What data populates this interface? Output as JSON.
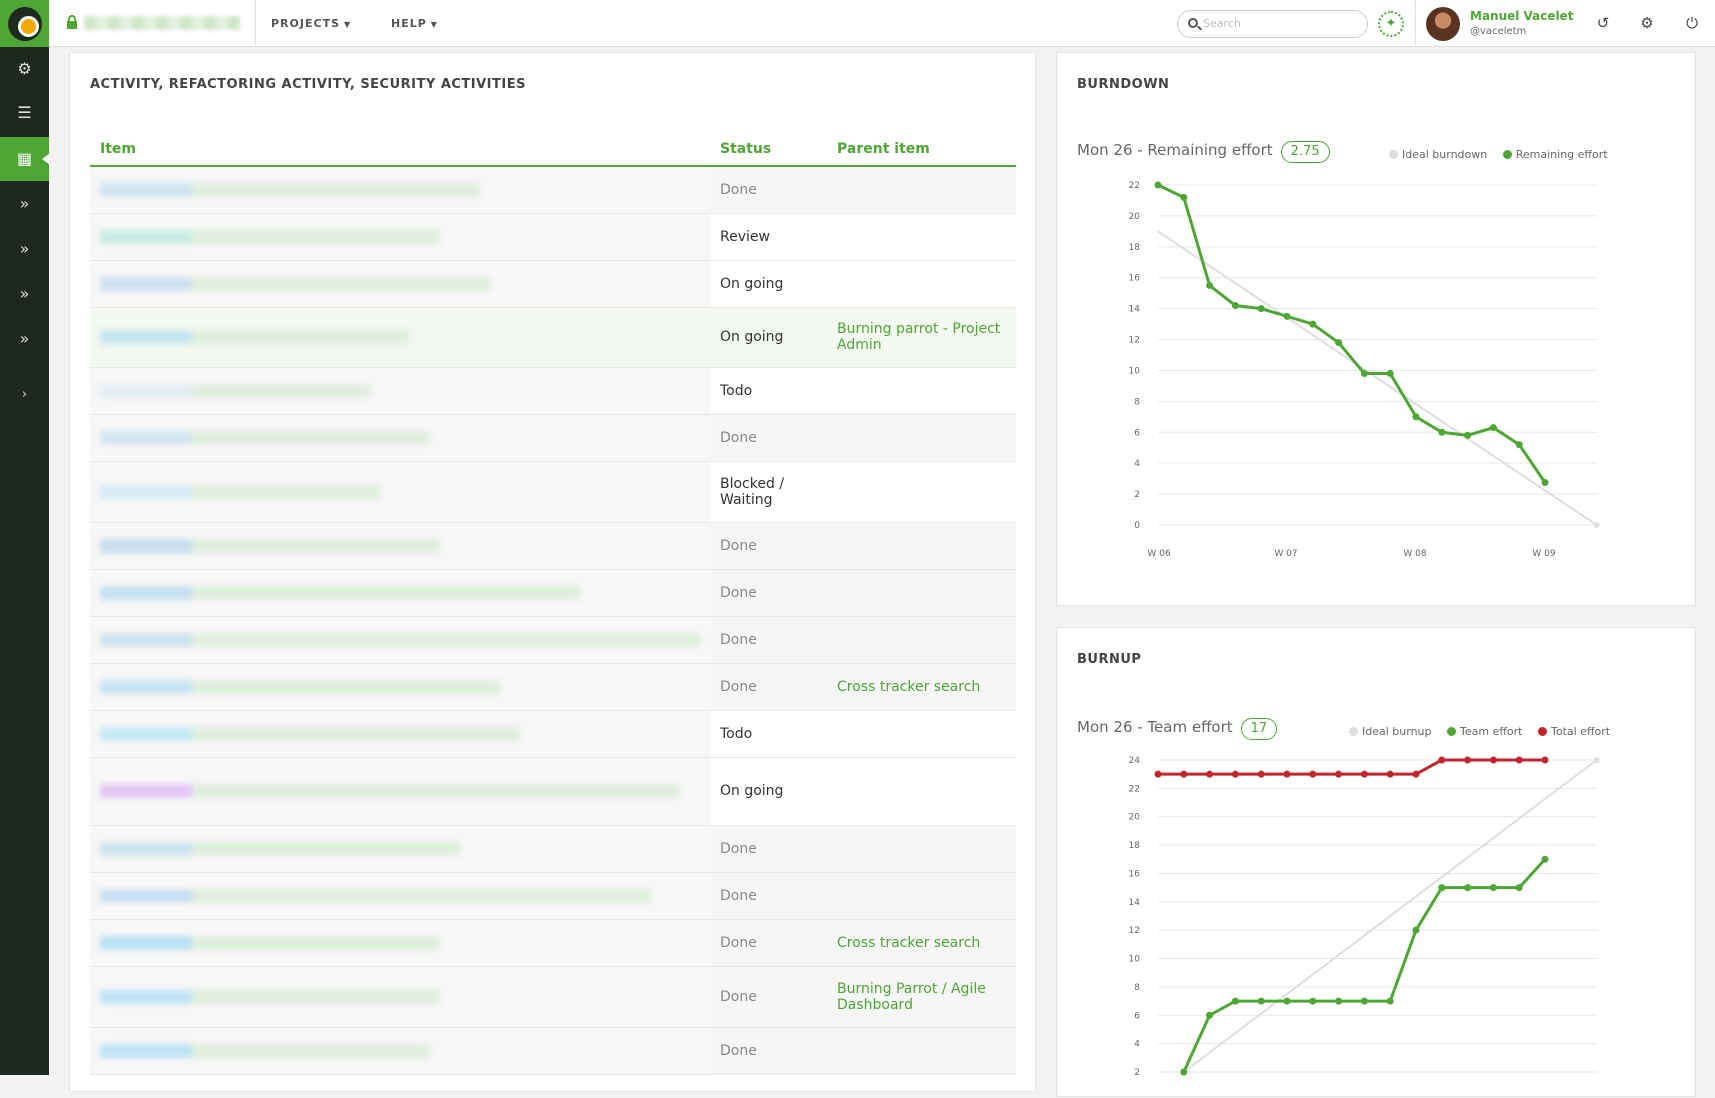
{
  "topbar": {
    "menu": [
      {
        "label": "PROJECTS"
      },
      {
        "label": "HELP"
      }
    ],
    "search_placeholder": "Search",
    "user": {
      "name": "Manuel Vacelet",
      "handle": "@vaceletm"
    }
  },
  "sidebar": {
    "items": [
      {
        "icon": "gears-icon"
      },
      {
        "icon": "list-icon"
      },
      {
        "icon": "table-icon",
        "active": true
      },
      {
        "icon": "double-chevron-icon"
      },
      {
        "icon": "double-chevron-icon"
      },
      {
        "icon": "double-chevron-icon"
      },
      {
        "icon": "double-chevron-icon"
      },
      {
        "icon": "chevron-right-icon"
      }
    ]
  },
  "report": {
    "title": "ACTIVITY, REFACTORING ACTIVITY, SECURITY ACTIVITIES",
    "columns": {
      "item": "Item",
      "status": "Status",
      "parent": "Parent item"
    },
    "rows": [
      {
        "status": "Done",
        "parent": ""
      },
      {
        "status": "Review",
        "parent": ""
      },
      {
        "status": "On going",
        "parent": ""
      },
      {
        "status": "On going",
        "parent": "Burning parrot - Project Admin"
      },
      {
        "status": "Todo",
        "parent": ""
      },
      {
        "status": "Done",
        "parent": ""
      },
      {
        "status": "Blocked / Waiting",
        "parent": ""
      },
      {
        "status": "Done",
        "parent": ""
      },
      {
        "status": "Done",
        "parent": ""
      },
      {
        "status": "Done",
        "parent": ""
      },
      {
        "status": "Done",
        "parent": "Cross tracker search"
      },
      {
        "status": "Todo",
        "parent": ""
      },
      {
        "status": "On going",
        "parent": ""
      },
      {
        "status": "Done",
        "parent": ""
      },
      {
        "status": "Done",
        "parent": ""
      },
      {
        "status": "Done",
        "parent": "Cross tracker search"
      },
      {
        "status": "Done",
        "parent": "Burning Parrot / Agile Dashboard"
      },
      {
        "status": "Done",
        "parent": ""
      }
    ]
  },
  "burndown": {
    "title": "BURNDOWN",
    "caption": "Mon 26 - Remaining effort",
    "value": "2.75",
    "legend": [
      "Ideal burndown",
      "Remaining effort"
    ]
  },
  "burnup": {
    "title": "BURNUP",
    "caption": "Mon 26 - Team effort",
    "value": "17",
    "legend": [
      "Ideal burnup",
      "Team effort",
      "Total effort"
    ]
  },
  "chart_data": [
    {
      "type": "line",
      "title": "BURNDOWN",
      "x_ticks": [
        "W 06",
        "W 07",
        "W 08",
        "W 09"
      ],
      "ylim": [
        0,
        22
      ],
      "y_ticks": [
        0,
        2,
        4,
        6,
        8,
        10,
        12,
        14,
        16,
        18,
        20,
        22
      ],
      "series": [
        {
          "name": "Ideal burndown",
          "color": "#dddddd",
          "x": [
            0,
            17
          ],
          "values": [
            19,
            0
          ]
        },
        {
          "name": "Remaining effort",
          "color": "#4ea635",
          "x": [
            0,
            1,
            2,
            3,
            4,
            5,
            6,
            7,
            8,
            9,
            10,
            11,
            12,
            13,
            14,
            15
          ],
          "values": [
            22,
            21.2,
            15.5,
            14.2,
            14,
            13.5,
            13,
            11.8,
            9.8,
            9.8,
            7,
            6,
            5.8,
            6.3,
            5.2,
            2.75
          ]
        }
      ]
    },
    {
      "type": "line",
      "title": "BURNUP",
      "ylim": [
        2,
        24
      ],
      "y_ticks": [
        2,
        4,
        6,
        8,
        10,
        12,
        14,
        16,
        18,
        20,
        22,
        24
      ],
      "series": [
        {
          "name": "Ideal burnup",
          "color": "#dddddd",
          "x": [
            1,
            17
          ],
          "values": [
            2,
            24
          ]
        },
        {
          "name": "Team effort",
          "color": "#4ea635",
          "x": [
            1,
            2,
            3,
            4,
            5,
            6,
            7,
            8,
            9,
            10,
            11,
            12,
            13,
            14,
            15
          ],
          "values": [
            2,
            6,
            7,
            7,
            7,
            7,
            7,
            7,
            7,
            12,
            15,
            15,
            15,
            15,
            17
          ]
        },
        {
          "name": "Total effort",
          "color": "#c0262b",
          "x": [
            0,
            1,
            2,
            3,
            4,
            5,
            6,
            7,
            8,
            9,
            10,
            11,
            12,
            13,
            14,
            15
          ],
          "values": [
            23,
            23,
            23,
            23,
            23,
            23,
            23,
            23,
            23,
            23,
            23,
            24,
            24,
            24,
            24,
            24
          ]
        }
      ]
    }
  ]
}
